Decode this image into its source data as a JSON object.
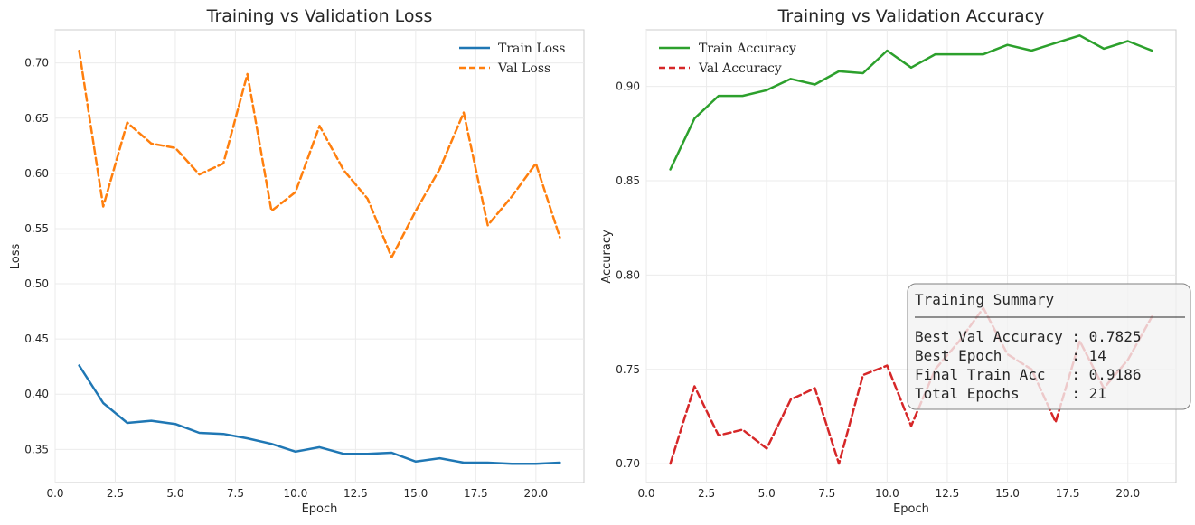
{
  "chart_data": [
    {
      "type": "line",
      "title": "Training vs Validation Loss",
      "xlabel": "Epoch",
      "ylabel": "Loss",
      "xlim": [
        0,
        22
      ],
      "ylim": [
        0.32,
        0.73
      ],
      "xticks": [
        "0.0",
        "2.5",
        "5.0",
        "7.5",
        "10.0",
        "12.5",
        "15.0",
        "17.5",
        "20.0"
      ],
      "yticks": [
        "0.35",
        "0.40",
        "0.45",
        "0.50",
        "0.55",
        "0.60",
        "0.65",
        "0.70"
      ],
      "grid": true,
      "legend_position": "top-right",
      "x": [
        1,
        2,
        3,
        4,
        5,
        6,
        7,
        8,
        9,
        10,
        11,
        12,
        13,
        14,
        15,
        16,
        17,
        18,
        19,
        20,
        21
      ],
      "series": [
        {
          "name": "Train Loss",
          "color": "#1f77b4",
          "dash": "solid",
          "values": [
            0.426,
            0.392,
            0.374,
            0.376,
            0.373,
            0.365,
            0.364,
            0.36,
            0.355,
            0.348,
            0.352,
            0.346,
            0.346,
            0.347,
            0.339,
            0.342,
            0.338,
            0.338,
            0.337,
            0.337,
            0.338
          ]
        },
        {
          "name": "Val Loss",
          "color": "#ff7f0e",
          "dash": "dashed",
          "values": [
            0.711,
            0.57,
            0.646,
            0.627,
            0.623,
            0.599,
            0.609,
            0.69,
            0.566,
            0.583,
            0.643,
            0.603,
            0.577,
            0.524,
            0.566,
            0.604,
            0.655,
            0.553,
            0.579,
            0.609,
            0.542
          ]
        }
      ]
    },
    {
      "type": "line",
      "title": "Training vs Validation Accuracy",
      "xlabel": "Epoch",
      "ylabel": "Accuracy",
      "xlim": [
        0,
        22
      ],
      "ylim": [
        0.69,
        0.93
      ],
      "xticks": [
        "0.0",
        "2.5",
        "5.0",
        "7.5",
        "10.0",
        "12.5",
        "15.0",
        "17.5",
        "20.0"
      ],
      "yticks": [
        "0.70",
        "0.75",
        "0.80",
        "0.85",
        "0.90"
      ],
      "grid": true,
      "legend_position": "top-left",
      "x": [
        1,
        2,
        3,
        4,
        5,
        6,
        7,
        8,
        9,
        10,
        11,
        12,
        13,
        14,
        15,
        16,
        17,
        18,
        19,
        20,
        21
      ],
      "series": [
        {
          "name": "Train Accuracy",
          "color": "#2ca02c",
          "dash": "solid",
          "values": [
            0.856,
            0.883,
            0.895,
            0.895,
            0.898,
            0.904,
            0.901,
            0.908,
            0.907,
            0.919,
            0.91,
            0.917,
            0.917,
            0.917,
            0.922,
            0.919,
            0.923,
            0.927,
            0.92,
            0.924,
            0.919
          ]
        },
        {
          "name": "Val Accuracy",
          "color": "#d62728",
          "dash": "dashed",
          "values": [
            0.7,
            0.741,
            0.715,
            0.718,
            0.708,
            0.734,
            0.74,
            0.7,
            0.747,
            0.752,
            0.72,
            0.75,
            0.765,
            0.7825,
            0.758,
            0.75,
            0.722,
            0.765,
            0.74,
            0.755,
            0.778
          ]
        }
      ],
      "summary": {
        "title": "Training Summary",
        "lines": [
          "Best Val Accuracy : 0.7825",
          "Best Epoch        : 14",
          "Final Train Acc   : 0.9186",
          "Total Epochs      : 21"
        ]
      }
    }
  ]
}
